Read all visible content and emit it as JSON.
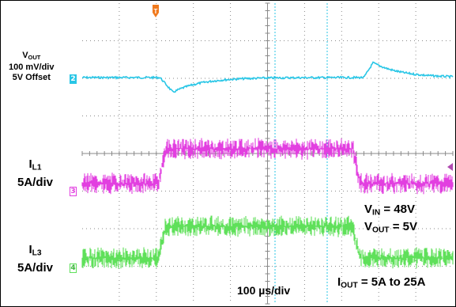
{
  "chart_data": {
    "type": "line",
    "title": "",
    "trigger_marker": "T",
    "timebase": {
      "label": "100",
      "unit": "µs/div",
      "divisions": 10
    },
    "vertical_divisions": 8,
    "series": [
      {
        "name": "VOUT",
        "label_main": "V",
        "label_sub": "OUT",
        "scale": "100 mV/div",
        "offset": "5V Offset",
        "channel": "2",
        "color": "#29c6e6",
        "description_points": [
          [
            0,
            0
          ],
          [
            2.1,
            0
          ],
          [
            2.4,
            -0.55
          ],
          [
            3.0,
            -0.25
          ],
          [
            4.0,
            -0.08
          ],
          [
            5.0,
            -0.02
          ],
          [
            7.0,
            0
          ],
          [
            7.5,
            0
          ],
          [
            7.8,
            0.55
          ],
          [
            8.5,
            0.25
          ],
          [
            9.5,
            0.08
          ],
          [
            10,
            0.05
          ]
        ]
      },
      {
        "name": "IL1",
        "label_main": "I",
        "label_sub": "L1",
        "scale": "5A/div",
        "channel": "3",
        "color": "#e23fe0",
        "description_points": [
          [
            0,
            5
          ],
          [
            2.05,
            5
          ],
          [
            2.25,
            25
          ],
          [
            7.3,
            25
          ],
          [
            7.5,
            5
          ],
          [
            10,
            5
          ]
        ]
      },
      {
        "name": "IL3",
        "label_main": "I",
        "label_sub": "L3",
        "scale": "5A/div",
        "channel": "4",
        "color": "#5fe05a",
        "description_points": [
          [
            0,
            5
          ],
          [
            2.05,
            5
          ],
          [
            2.25,
            25
          ],
          [
            7.3,
            25
          ],
          [
            7.5,
            5
          ],
          [
            10,
            5
          ]
        ]
      }
    ],
    "annotations": [
      {
        "main": "V",
        "sub": "IN",
        "text": " = 48V"
      },
      {
        "main": "V",
        "sub": "OUT",
        "text": " = 5V"
      },
      {
        "main": "I",
        "sub": "OUT",
        "text": " = 5A to 25A"
      }
    ],
    "grid": true
  }
}
